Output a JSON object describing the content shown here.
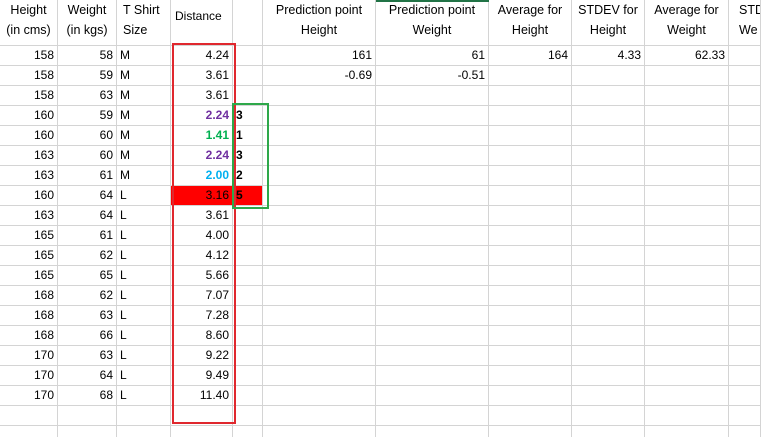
{
  "headers": {
    "height": "Height (in cms)",
    "weight": "Weight (in kgs)",
    "tshirt": "T Shirt Size",
    "distance": "Distance",
    "pred_height": "Prediction point Height",
    "pred_weight": "Prediction point Weight",
    "avg_height": "Average for Height",
    "stdev_height": "STDEV for Height",
    "avg_weight": "Average for Weight",
    "stdev_weight": "STD We"
  },
  "rows": [
    {
      "height": "158",
      "weight": "58",
      "size": "M",
      "distance": "4.24",
      "rank": ""
    },
    {
      "height": "158",
      "weight": "59",
      "size": "M",
      "distance": "3.61",
      "rank": ""
    },
    {
      "height": "158",
      "weight": "63",
      "size": "M",
      "distance": "3.61",
      "rank": ""
    },
    {
      "height": "160",
      "weight": "59",
      "size": "M",
      "distance": "2.24",
      "rank": "3"
    },
    {
      "height": "160",
      "weight": "60",
      "size": "M",
      "distance": "1.41",
      "rank": "1"
    },
    {
      "height": "163",
      "weight": "60",
      "size": "M",
      "distance": "2.24",
      "rank": "3"
    },
    {
      "height": "163",
      "weight": "61",
      "size": "M",
      "distance": "2.00",
      "rank": "2"
    },
    {
      "height": "160",
      "weight": "64",
      "size": "L",
      "distance": "3.16",
      "rank": "5"
    },
    {
      "height": "163",
      "weight": "64",
      "size": "L",
      "distance": "3.61",
      "rank": ""
    },
    {
      "height": "165",
      "weight": "61",
      "size": "L",
      "distance": "4.00",
      "rank": ""
    },
    {
      "height": "165",
      "weight": "62",
      "size": "L",
      "distance": "4.12",
      "rank": ""
    },
    {
      "height": "165",
      "weight": "65",
      "size": "L",
      "distance": "5.66",
      "rank": ""
    },
    {
      "height": "168",
      "weight": "62",
      "size": "L",
      "distance": "7.07",
      "rank": ""
    },
    {
      "height": "168",
      "weight": "63",
      "size": "L",
      "distance": "7.28",
      "rank": ""
    },
    {
      "height": "168",
      "weight": "66",
      "size": "L",
      "distance": "8.60",
      "rank": ""
    },
    {
      "height": "170",
      "weight": "63",
      "size": "L",
      "distance": "9.22",
      "rank": ""
    },
    {
      "height": "170",
      "weight": "64",
      "size": "L",
      "distance": "9.49",
      "rank": ""
    },
    {
      "height": "170",
      "weight": "68",
      "size": "L",
      "distance": "11.40",
      "rank": ""
    }
  ],
  "stats": {
    "pred_height_value": "161",
    "pred_weight_value": "61",
    "avg_height_value": "164",
    "stdev_height_value": "4.33",
    "avg_weight_value": "62.33",
    "pred_height_std": "-0.69",
    "pred_weight_std": "-0.51"
  },
  "colors": {
    "purple": "#7030a0",
    "green": "#00b050",
    "cyan": "#00b0f0",
    "red_fill": "#ff0000",
    "red_box": "#e0282e",
    "green_box": "#2ea84a",
    "gridline": "#d4d4d4",
    "excel_green": "#217346"
  }
}
